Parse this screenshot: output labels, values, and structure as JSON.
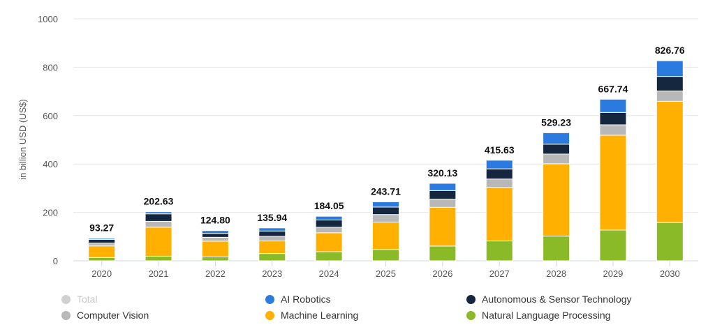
{
  "chart_data": {
    "type": "bar",
    "stacked": true,
    "ylabel": "in billion USD (US$)",
    "ylim": [
      0,
      1000
    ],
    "yticks": [
      "0",
      "200",
      "400",
      "600",
      "800",
      "1000"
    ],
    "grid": true,
    "legend_position": "bottom",
    "categories": [
      "2020",
      "2021",
      "2022",
      "2023",
      "2024",
      "2025",
      "2026",
      "2027",
      "2028",
      "2029",
      "2030"
    ],
    "totals": [
      "93.27",
      "202.63",
      "124.80",
      "135.94",
      "184.05",
      "243.71",
      "320.13",
      "415.63",
      "529.23",
      "667.74",
      "826.76"
    ],
    "series": [
      {
        "name": "Natural Language Processing",
        "color": "#8aba27",
        "values": [
          13.5,
          19,
          16,
          30,
          37.5,
          47,
          61,
          82,
          102,
          127,
          158
        ]
      },
      {
        "name": "Machine Learning",
        "color": "#ffb000",
        "values": [
          48,
          120,
          65,
          52,
          78,
          113,
          160,
          222,
          299,
          392,
          501
        ]
      },
      {
        "name": "Computer Vision",
        "color": "#b8b8b8",
        "values": [
          12,
          24,
          16,
          19,
          23,
          31,
          34,
          34,
          40,
          43,
          43
        ]
      },
      {
        "name": "Autonomous & Sensor Technology",
        "color": "#14273f",
        "values": [
          15,
          31,
          16.5,
          22,
          30,
          31,
          35,
          42,
          41,
          51,
          60
        ]
      },
      {
        "name": "AI Robotics",
        "color": "#2b7ae0",
        "values": [
          4.77,
          8.63,
          11.3,
          12.94,
          15.55,
          21.71,
          30.13,
          35.63,
          47.23,
          54.74,
          64.76
        ]
      }
    ],
    "legend": [
      {
        "name": "Total",
        "color": "#d0d0d0",
        "disabled": true
      },
      {
        "name": "AI Robotics",
        "color": "#2b7ae0"
      },
      {
        "name": "Autonomous & Sensor Technology",
        "color": "#14273f"
      },
      {
        "name": "Computer Vision",
        "color": "#b8b8b8"
      },
      {
        "name": "Machine Learning",
        "color": "#ffb000"
      },
      {
        "name": "Natural Language Processing",
        "color": "#8aba27"
      }
    ]
  }
}
